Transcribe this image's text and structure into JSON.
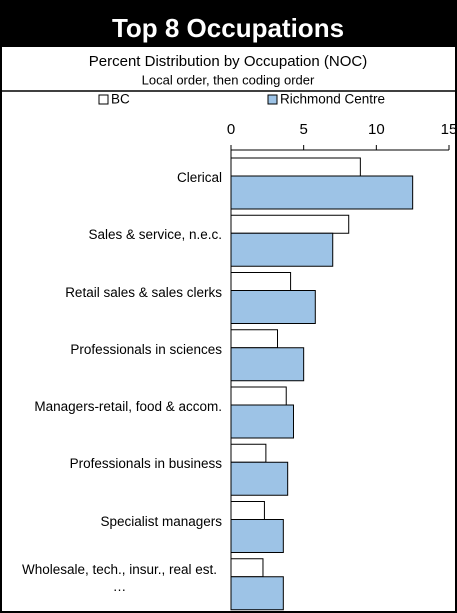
{
  "chart_data": {
    "type": "bar",
    "orientation": "horizontal",
    "title": "Top 8 Occupations",
    "subtitle": "Percent Distribution by Occupation (NOC)",
    "note": "Local order, then coding order",
    "categories": [
      "Clerical",
      "Sales & service, n.e.c.",
      "Retail sales & sales clerks",
      "Professionals in sciences",
      "Managers-retail, food & accom.",
      "Professionals in business",
      "Specialist managers",
      "Wholesale, tech., insur., real est. …"
    ],
    "series": [
      {
        "name": "BC",
        "color": "#ffffff",
        "values": [
          8.9,
          8.1,
          4.1,
          3.2,
          3.8,
          2.4,
          2.3,
          2.2
        ]
      },
      {
        "name": "Richmond Centre",
        "color": "#9dc3e6",
        "values": [
          12.5,
          7.0,
          5.8,
          5.0,
          4.3,
          3.9,
          3.6,
          3.6
        ]
      }
    ],
    "xlim": [
      0,
      15
    ],
    "xticks": [
      0,
      5,
      10,
      15
    ],
    "legend": "top"
  }
}
